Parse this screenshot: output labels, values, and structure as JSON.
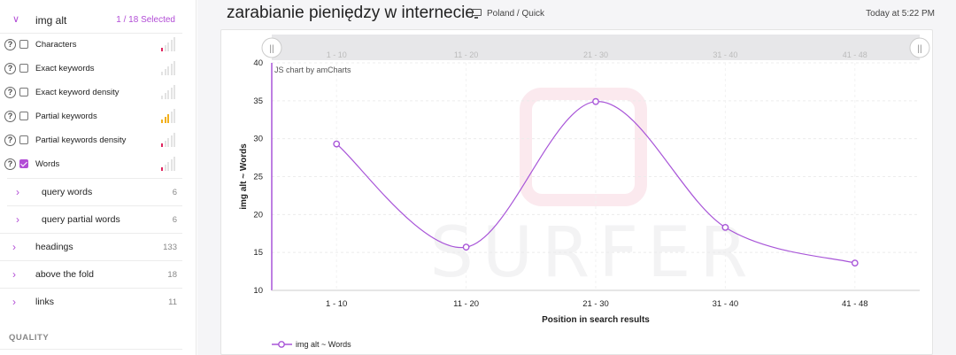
{
  "sidebar": {
    "group": {
      "title": "img alt",
      "count": "1 / 18 Selected"
    },
    "metrics": [
      {
        "label": "Characters",
        "checked": false,
        "level": 1,
        "level_color": "#e0245e"
      },
      {
        "label": "Exact keywords",
        "checked": false,
        "level": 0,
        "level_color": "#e3e3e3"
      },
      {
        "label": "Exact keyword density",
        "checked": false,
        "level": 0,
        "level_color": "#e3e3e3"
      },
      {
        "label": "Partial keywords",
        "checked": false,
        "level": 3,
        "level_color": "#f2b01e"
      },
      {
        "label": "Partial keywords density",
        "checked": false,
        "level": 1,
        "level_color": "#e0245e"
      },
      {
        "label": "Words",
        "checked": true,
        "level": 1,
        "level_color": "#e0245e"
      }
    ],
    "subgroups": [
      {
        "label": "query words",
        "count": "6"
      },
      {
        "label": "query partial words",
        "count": "6"
      }
    ],
    "groups": [
      {
        "label": "headings",
        "count": "133"
      },
      {
        "label": "above the fold",
        "count": "18"
      },
      {
        "label": "links",
        "count": "11"
      }
    ],
    "section": "QUALITY"
  },
  "header": {
    "title": "zarabianie pieniędzy w internecie",
    "location": "Poland / Quick",
    "time": "Today at 5:22 PM"
  },
  "chart_data": {
    "type": "line",
    "categories": [
      "1 - 10",
      "11 - 20",
      "21 - 30",
      "31 - 40",
      "41 - 48"
    ],
    "series": [
      {
        "name": "img alt ~ Words",
        "values": [
          29.3,
          15.7,
          34.9,
          18.3,
          13.6
        ]
      }
    ],
    "xlabel": "Position in search results",
    "ylabel": "img alt ~ Words",
    "ylim": [
      10,
      40
    ],
    "yticks": [
      10,
      15,
      20,
      25,
      30,
      35,
      40
    ],
    "credit": "JS chart by amCharts",
    "watermark": "SURFER",
    "grid": true,
    "legend": "bottom-left",
    "color": "#a855d8"
  }
}
